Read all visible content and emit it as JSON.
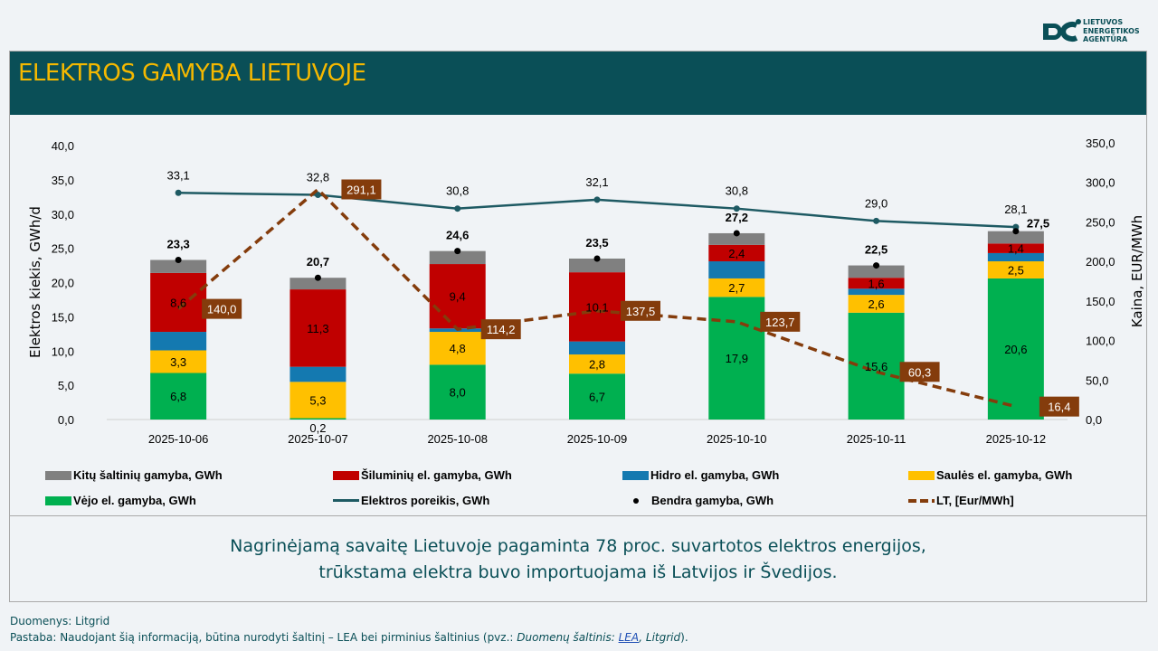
{
  "header": {
    "title": "ELEKTROS GAMYBA LIETUVOJE",
    "logo_text": [
      "LIETUVOS",
      "ENERGETIKOS",
      "AGENTŪRA"
    ]
  },
  "colors": {
    "header_bg": "#0a4f57",
    "title": "#f5b800",
    "other": "#808080",
    "thermal": "#c00000",
    "hydro": "#1479b0",
    "solar": "#ffc000",
    "wind": "#00b050",
    "demand": "#1e5a63",
    "price": "#843c0c"
  },
  "chart_data": {
    "type": "bar",
    "stacked": true,
    "categories": [
      "2025-10-06",
      "2025-10-07",
      "2025-10-08",
      "2025-10-09",
      "2025-10-10",
      "2025-10-11",
      "2025-10-12"
    ],
    "ylabel": "Elektros kiekis, GWh/d",
    "y2label": "Kaina, EUR/MWh",
    "ylim": [
      0,
      40
    ],
    "y2lim": [
      0,
      350
    ],
    "yticks": [
      "0,0",
      "5,0",
      "10,0",
      "15,0",
      "20,0",
      "25,0",
      "30,0",
      "35,0",
      "40,0"
    ],
    "y2ticks": [
      "0,0",
      "50,0",
      "100,0",
      "150,0",
      "200,0",
      "250,0",
      "300,0",
      "350,0"
    ],
    "series": [
      {
        "name": "Vėjo el. gamyba, GWh",
        "key": "wind",
        "values": [
          6.8,
          0.2,
          8.0,
          6.7,
          17.9,
          15.6,
          20.6
        ],
        "labels": [
          "6,8",
          "0,2",
          "8,0",
          "6,7",
          "17,9",
          "15,6",
          "20,6"
        ]
      },
      {
        "name": "Saulės el. gamyba, GWh",
        "key": "solar",
        "values": [
          3.3,
          5.3,
          4.8,
          2.8,
          2.7,
          2.6,
          2.5
        ],
        "labels": [
          "3,3",
          "5,3",
          "4,8",
          "2,8",
          "2,7",
          "2,6",
          "2,5"
        ]
      },
      {
        "name": "Hidro el. gamyba, GWh",
        "key": "hydro",
        "values": [
          2.7,
          2.2,
          0.5,
          1.9,
          2.5,
          0.9,
          1.2
        ]
      },
      {
        "name": "Šiluminių el. gamyba, GWh",
        "key": "thermal",
        "values": [
          8.6,
          11.3,
          9.4,
          10.1,
          2.4,
          1.6,
          1.4
        ],
        "labels": [
          "8,6",
          "11,3",
          "9,4",
          "10,1",
          "2,4",
          "1,6",
          "1,4"
        ]
      },
      {
        "name": "Kitų šaltinių gamyba,  GWh",
        "key": "other",
        "values": [
          1.9,
          1.7,
          1.9,
          2.0,
          1.7,
          1.8,
          1.8
        ]
      }
    ],
    "total": {
      "name": "Bendra gamyba, GWh",
      "values": [
        23.3,
        20.7,
        24.6,
        23.5,
        27.2,
        22.5,
        27.5
      ],
      "labels": [
        "23,3",
        "20,7",
        "24,6",
        "23,5",
        "27,2",
        "22,5",
        "27,5"
      ]
    },
    "demand": {
      "name": "Elektros poreikis, GWh",
      "values": [
        33.1,
        32.8,
        30.8,
        32.1,
        30.8,
        29.0,
        28.1
      ],
      "labels": [
        "33,1",
        "32,8",
        "30,8",
        "32,1",
        "30,8",
        "29,0",
        "28,1"
      ]
    },
    "price": {
      "name": "LT, [Eur/MWh]",
      "axis": "right",
      "values": [
        140.0,
        291.1,
        114.2,
        137.5,
        123.7,
        60.3,
        16.4
      ],
      "labels": [
        "140,0",
        "291,1",
        "114,2",
        "137,5",
        "123,7",
        "60,3",
        "16,4"
      ]
    },
    "legend": {
      "placement": "bottom",
      "items": [
        {
          "label": "Kitų šaltinių gamyba,  GWh",
          "key": "other",
          "kind": "box"
        },
        {
          "label": "Šiluminių el. gamyba, GWh",
          "key": "thermal",
          "kind": "box"
        },
        {
          "label": "Hidro el. gamyba, GWh",
          "key": "hydro",
          "kind": "box"
        },
        {
          "label": "Saulės el. gamyba, GWh",
          "key": "solar",
          "kind": "box"
        },
        {
          "label": "Vėjo el. gamyba, GWh",
          "key": "wind",
          "kind": "box"
        },
        {
          "label": "Elektros poreikis, GWh",
          "key": "demand",
          "kind": "line"
        },
        {
          "label": "Bendra gamyba, GWh",
          "key": "total",
          "kind": "dot"
        },
        {
          "label": "LT, [Eur/MWh]",
          "key": "price",
          "kind": "dash"
        }
      ]
    }
  },
  "summary": {
    "line1": "Nagrinėjamą savaitę Lietuvoje pagaminta 78 proc. suvartotos elektros energijos,",
    "line2": "trūkstama elektra buvo importuojama iš Latvijos ir Švedijos."
  },
  "footer": {
    "source": "Duomenys: Litgrid",
    "note_prefix": "Pastaba: Naudojant šią informaciją, būtina nurodyti šaltinį – LEA bei pirminius šaltinius (pvz.: ",
    "note_italic": "Duomenų šaltinis: ",
    "note_link": "LEA",
    "note_italic2": ", Litgrid",
    "note_suffix": ")."
  }
}
